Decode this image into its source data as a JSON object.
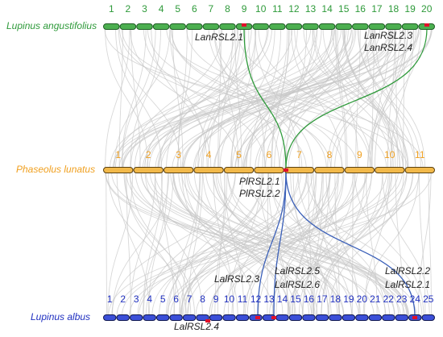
{
  "species": [
    {
      "name": "Lupinus angustifolius",
      "chromosomes": [
        "1",
        "2",
        "3",
        "4",
        "5",
        "6",
        "7",
        "8",
        "9",
        "10",
        "11",
        "12",
        "13",
        "14",
        "15",
        "16",
        "17",
        "18",
        "19",
        "20"
      ]
    },
    {
      "name": "Phaseolus lunatus",
      "chromosomes": [
        "1",
        "2",
        "3",
        "4",
        "5",
        "6",
        "7",
        "8",
        "9",
        "10",
        "11"
      ]
    },
    {
      "name": "Lupinus albus",
      "chromosomes": [
        "1",
        "2",
        "3",
        "4",
        "5",
        "6",
        "7",
        "8",
        "9",
        "10",
        "11",
        "12",
        "13",
        "14",
        "15",
        "16",
        "17",
        "18",
        "19",
        "20",
        "21",
        "22",
        "23",
        "24",
        "25"
      ]
    }
  ],
  "genes": [
    "LanRSL2.1",
    "LanRSL2.3",
    "LanRSL2.4",
    "PlRSL2.1",
    "PlRSL2.2",
    "LalRSL2.3",
    "LalRSL2.5",
    "LalRSL2.6",
    "LalRSL2.2",
    "LalRSL2.1",
    "LalRSL2.4"
  ]
}
